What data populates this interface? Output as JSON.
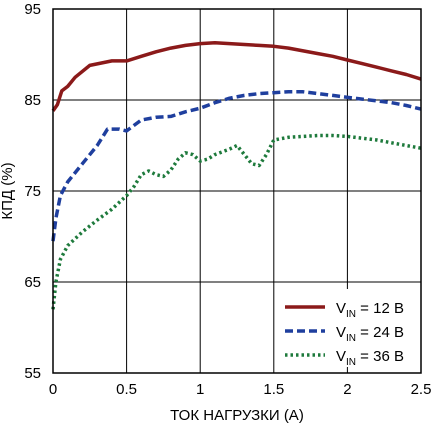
{
  "chart_data": {
    "type": "line",
    "xlabel": "ТОК НАГРУЗКИ (А)",
    "ylabel": "КПД (%)",
    "xlim": [
      0,
      2.5
    ],
    "ylim": [
      55,
      95
    ],
    "x_ticks": [
      "0",
      "0.5",
      "1",
      "1.5",
      "2",
      "2.5"
    ],
    "y_ticks": [
      "55",
      "65",
      "75",
      "85",
      "95"
    ],
    "grid": true,
    "legend_position": "bottom-right",
    "series": [
      {
        "name_main": "V",
        "name_sub": "IN",
        "name_rest": " = 12 В",
        "color": "#8b1a1a",
        "dash": "solid",
        "points": [
          [
            0.0,
            83.8
          ],
          [
            0.03,
            84.5
          ],
          [
            0.06,
            86.0
          ],
          [
            0.1,
            86.5
          ],
          [
            0.15,
            87.5
          ],
          [
            0.25,
            88.8
          ],
          [
            0.4,
            89.3
          ],
          [
            0.5,
            89.3
          ],
          [
            0.6,
            89.8
          ],
          [
            0.7,
            90.3
          ],
          [
            0.8,
            90.7
          ],
          [
            0.9,
            91.0
          ],
          [
            1.0,
            91.2
          ],
          [
            1.1,
            91.3
          ],
          [
            1.2,
            91.2
          ],
          [
            1.3,
            91.1
          ],
          [
            1.4,
            91.0
          ],
          [
            1.5,
            90.9
          ],
          [
            1.6,
            90.7
          ],
          [
            1.7,
            90.4
          ],
          [
            1.8,
            90.1
          ],
          [
            1.9,
            89.8
          ],
          [
            2.0,
            89.4
          ],
          [
            2.1,
            89.0
          ],
          [
            2.2,
            88.6
          ],
          [
            2.3,
            88.2
          ],
          [
            2.4,
            87.8
          ],
          [
            2.5,
            87.3
          ]
        ]
      },
      {
        "name_main": "V",
        "name_sub": "IN",
        "name_rest": " = 24 В",
        "color": "#1f3f9e",
        "dash": "dashed",
        "points": [
          [
            0.0,
            69.5
          ],
          [
            0.02,
            72.0
          ],
          [
            0.05,
            74.5
          ],
          [
            0.1,
            76.0
          ],
          [
            0.2,
            78.0
          ],
          [
            0.3,
            80.0
          ],
          [
            0.37,
            81.8
          ],
          [
            0.45,
            81.8
          ],
          [
            0.5,
            81.6
          ],
          [
            0.6,
            82.8
          ],
          [
            0.7,
            83.1
          ],
          [
            0.8,
            83.2
          ],
          [
            0.9,
            83.7
          ],
          [
            1.0,
            84.1
          ],
          [
            1.1,
            84.7
          ],
          [
            1.2,
            85.2
          ],
          [
            1.3,
            85.5
          ],
          [
            1.4,
            85.7
          ],
          [
            1.5,
            85.8
          ],
          [
            1.6,
            85.9
          ],
          [
            1.7,
            85.9
          ],
          [
            1.8,
            85.7
          ],
          [
            1.9,
            85.5
          ],
          [
            2.0,
            85.3
          ],
          [
            2.1,
            85.1
          ],
          [
            2.2,
            84.9
          ],
          [
            2.3,
            84.7
          ],
          [
            2.4,
            84.4
          ],
          [
            2.5,
            84.0
          ]
        ]
      },
      {
        "name_main": "V",
        "name_sub": "IN",
        "name_rest": " = 36 В",
        "color": "#1e7a3c",
        "dash": "dotted",
        "points": [
          [
            0.0,
            62.0
          ],
          [
            0.02,
            65.0
          ],
          [
            0.05,
            67.5
          ],
          [
            0.1,
            69.0
          ],
          [
            0.2,
            70.5
          ],
          [
            0.3,
            71.8
          ],
          [
            0.4,
            73.0
          ],
          [
            0.5,
            74.5
          ],
          [
            0.55,
            75.5
          ],
          [
            0.6,
            76.8
          ],
          [
            0.65,
            77.2
          ],
          [
            0.7,
            76.8
          ],
          [
            0.75,
            76.6
          ],
          [
            0.8,
            77.3
          ],
          [
            0.85,
            78.5
          ],
          [
            0.9,
            79.2
          ],
          [
            0.95,
            79.0
          ],
          [
            1.0,
            78.3
          ],
          [
            1.05,
            78.5
          ],
          [
            1.1,
            79.0
          ],
          [
            1.2,
            79.6
          ],
          [
            1.25,
            80.0
          ],
          [
            1.3,
            79.0
          ],
          [
            1.35,
            78.0
          ],
          [
            1.4,
            77.8
          ],
          [
            1.45,
            79.0
          ],
          [
            1.5,
            80.6
          ],
          [
            1.6,
            80.9
          ],
          [
            1.7,
            81.0
          ],
          [
            1.8,
            81.1
          ],
          [
            1.9,
            81.1
          ],
          [
            2.0,
            81.0
          ],
          [
            2.1,
            80.8
          ],
          [
            2.2,
            80.6
          ],
          [
            2.3,
            80.3
          ],
          [
            2.4,
            80.0
          ],
          [
            2.5,
            79.7
          ]
        ]
      }
    ]
  }
}
